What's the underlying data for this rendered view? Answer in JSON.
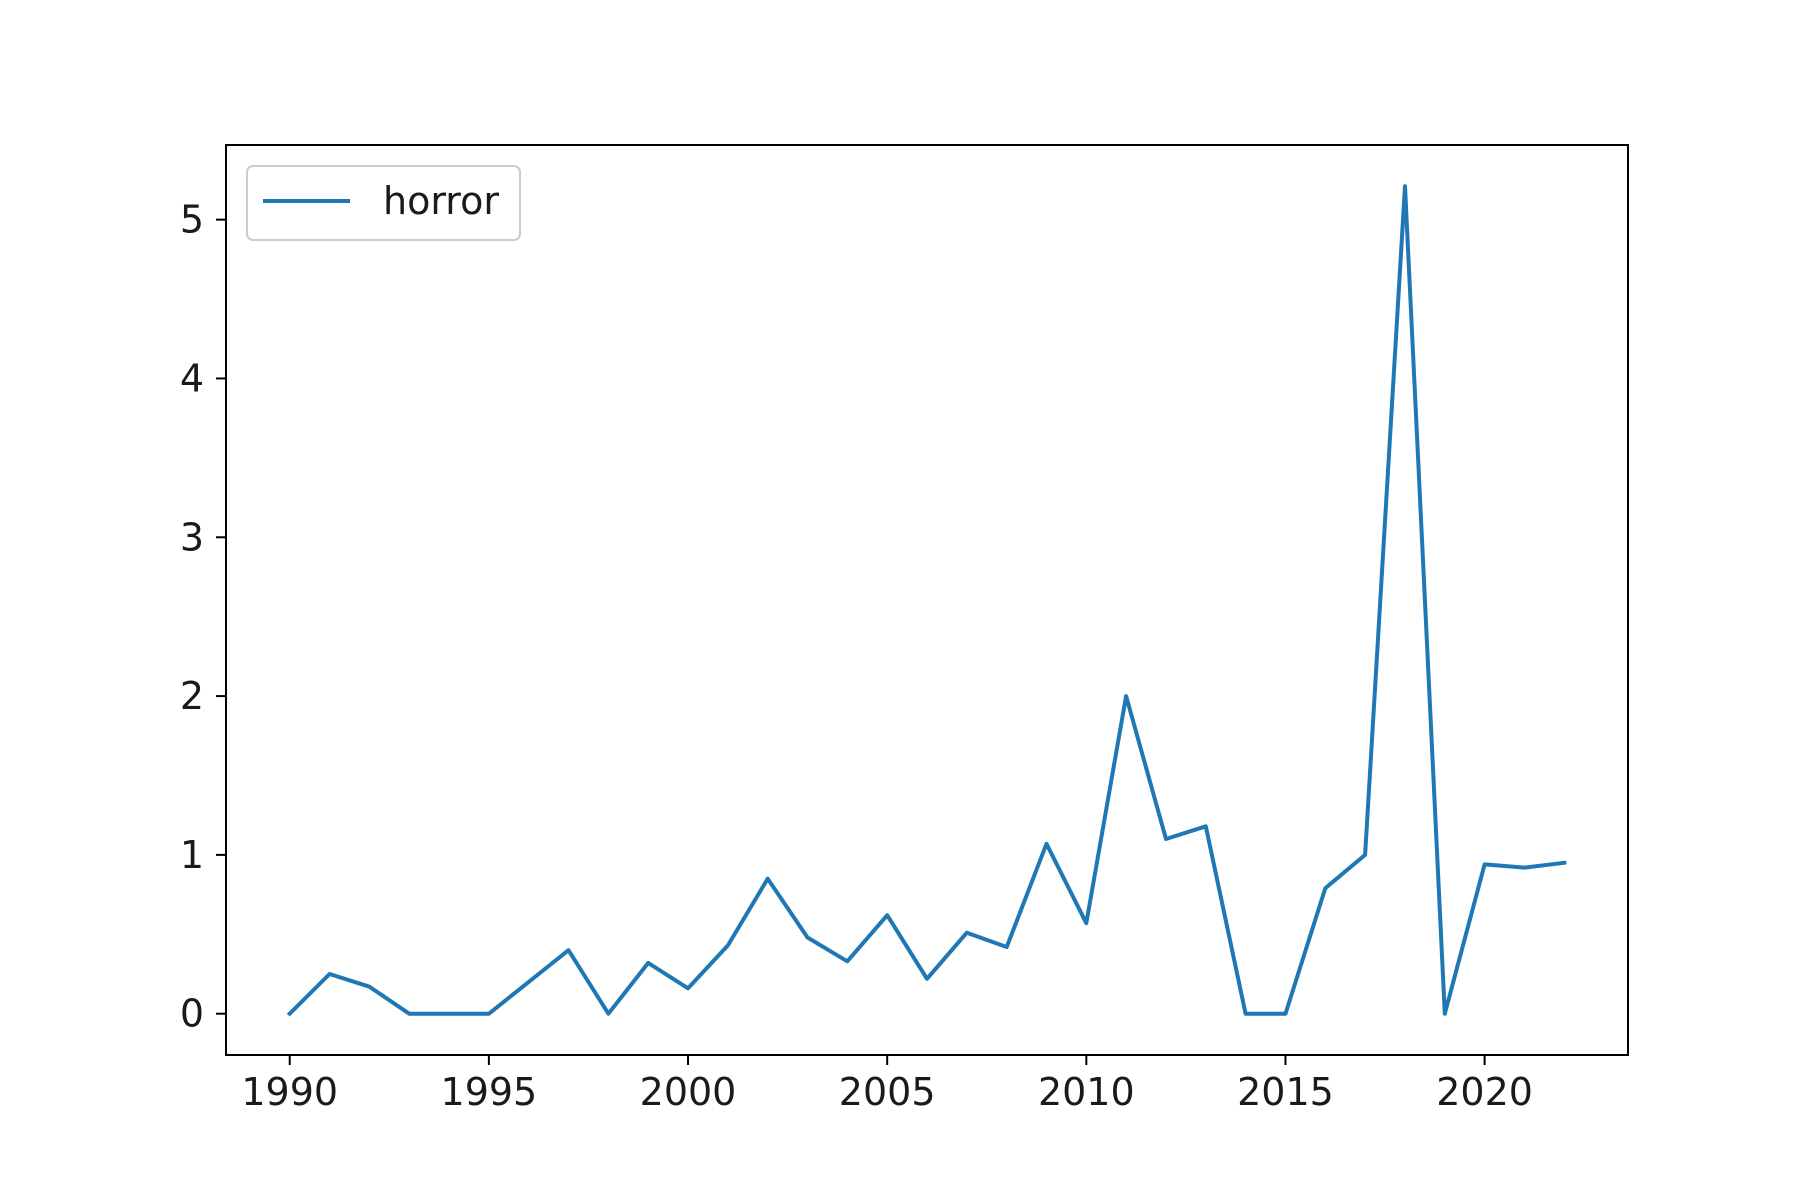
{
  "chart_data": {
    "type": "line",
    "title": "",
    "xlabel": "",
    "ylabel": "",
    "xlim": [
      1988.4,
      2023.6
    ],
    "ylim": [
      -0.26,
      5.47
    ],
    "xticks": [
      1990,
      1995,
      2000,
      2005,
      2010,
      2015,
      2020
    ],
    "yticks": [
      0,
      1,
      2,
      3,
      4,
      5
    ],
    "grid": false,
    "legend_position": "top-left",
    "x": [
      1990,
      1991,
      1992,
      1993,
      1994,
      1995,
      1996,
      1997,
      1998,
      1999,
      2000,
      2001,
      2002,
      2003,
      2004,
      2005,
      2006,
      2007,
      2008,
      2009,
      2010,
      2011,
      2012,
      2013,
      2014,
      2015,
      2016,
      2017,
      2018,
      2019,
      2020,
      2021,
      2022
    ],
    "series": [
      {
        "name": "horror",
        "color": "#1f77b4",
        "values": [
          0,
          0.25,
          0.17,
          0,
          0,
          0,
          0.2,
          0.4,
          0,
          0.32,
          0.16,
          0.43,
          0.85,
          0.48,
          0.33,
          0.62,
          0.22,
          0.51,
          0.42,
          1.07,
          0.57,
          2.0,
          1.1,
          1.18,
          0,
          0,
          0.79,
          1.0,
          5.21,
          0,
          0.94,
          0.92,
          0.95
        ]
      }
    ]
  }
}
